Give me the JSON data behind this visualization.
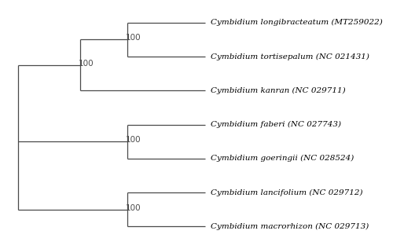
{
  "taxa": [
    "Cymbidium longibracteatum (MT259022)",
    "Cymbidium tortisepalum (NC 021431)",
    "Cymbidium kanran (NC 029711)",
    "Cymbidium faberi (NC 027743)",
    "Cymbidium goeringii (NC 028524)",
    "Cymbidium lancifolium (NC 029712)",
    "Cymbidium macrorhizon (NC 029713)"
  ],
  "background_color": "#ffffff",
  "line_color": "#4a4a4a",
  "label_color": "#000000",
  "font_size": 7.5,
  "bootstrap_font_size": 7.5,
  "figsize": [
    5.0,
    3.17
  ],
  "dpi": 100
}
